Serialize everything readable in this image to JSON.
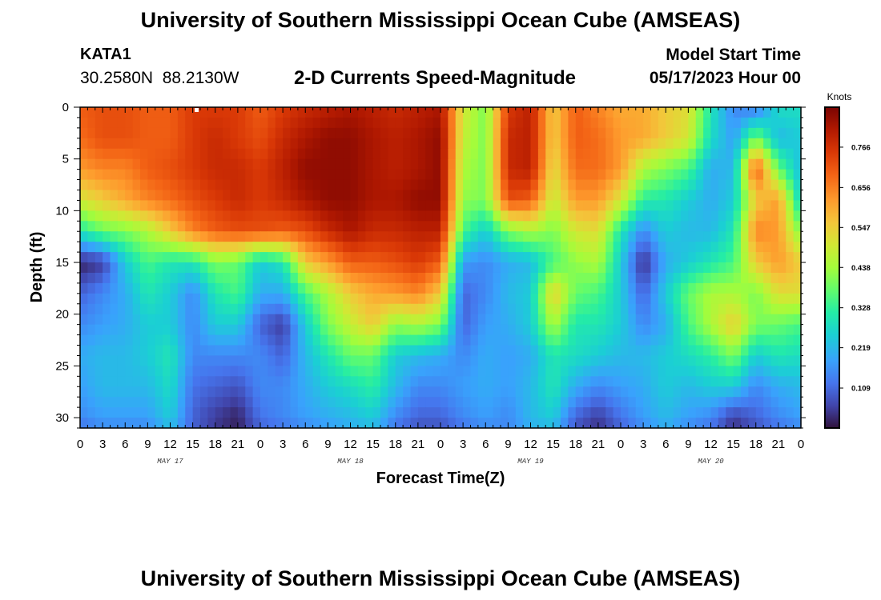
{
  "header": {
    "title": "University of Southern Mississippi Ocean Cube (AMSEAS)",
    "station_id": "KATA1",
    "coordinates": "30.2580N  88.2130W",
    "chart_title": "2-D Currents Speed-Magnitude",
    "model_start_label": "Model Start Time",
    "model_start_value": "05/17/2023 Hour 00"
  },
  "footer": {
    "title": "University of Southern Mississippi Ocean Cube (AMSEAS)"
  },
  "chart_data": {
    "type": "heatmap",
    "title": "2-D Currents Speed-Magnitude",
    "xlabel": "Forecast Time(Z)",
    "ylabel": "Depth (ft)",
    "x_range_hours": [
      0,
      96
    ],
    "y_range_ft": [
      0,
      31
    ],
    "y_reversed": true,
    "x_tick_hours": [
      0,
      3,
      6,
      9,
      12,
      15,
      18,
      21,
      24,
      27,
      30,
      33,
      36,
      39,
      42,
      45,
      48,
      51,
      54,
      57,
      60,
      63,
      66,
      69,
      72,
      75,
      78,
      81,
      84,
      87,
      90,
      93,
      96
    ],
    "x_tick_labels": [
      "0",
      "3",
      "6",
      "9",
      "12",
      "15",
      "18",
      "21",
      "0",
      "3",
      "6",
      "9",
      "12",
      "15",
      "18",
      "21",
      "0",
      "3",
      "6",
      "9",
      "12",
      "15",
      "18",
      "21",
      "0",
      "3",
      "6",
      "9",
      "12",
      "15",
      "18",
      "21",
      "0"
    ],
    "day_labels": [
      {
        "text": "MAY 17",
        "hour": 12
      },
      {
        "text": "MAY 18",
        "hour": 36
      },
      {
        "text": "MAY 19",
        "hour": 60
      },
      {
        "text": "MAY 20",
        "hour": 84
      }
    ],
    "y_ticks": [
      0,
      5,
      10,
      15,
      20,
      25,
      30
    ],
    "y_tick_labels": [
      "0",
      "5",
      "10",
      "15",
      "20",
      "25",
      "30"
    ],
    "colorbar": {
      "unit": "Knots",
      "min": 0.0,
      "max": 0.875,
      "ticks": [
        0.109,
        0.219,
        0.328,
        0.438,
        0.547,
        0.656,
        0.766
      ],
      "tick_labels": [
        "0.109",
        "0.219",
        "0.328",
        "0.438",
        "0.547",
        "0.656",
        "0.766"
      ]
    },
    "grid_times_hours": [
      0,
      3,
      6,
      9,
      12,
      15,
      18,
      21,
      24,
      27,
      30,
      33,
      36,
      39,
      42,
      45,
      48,
      51,
      54,
      57,
      60,
      63,
      66,
      69,
      72,
      75,
      78,
      81,
      84,
      87,
      90,
      93,
      96
    ],
    "grid_depths_ft": [
      0,
      3,
      6,
      9,
      12,
      15,
      18,
      21,
      24,
      27,
      30,
      31
    ],
    "speed_knots": [
      [
        0.7,
        0.72,
        0.72,
        0.7,
        0.7,
        0.75,
        0.75,
        0.75,
        0.7,
        0.75,
        0.78,
        0.8,
        0.82,
        0.8,
        0.78,
        0.8,
        0.82,
        0.5,
        0.4,
        0.75,
        0.8,
        0.55,
        0.7,
        0.65,
        0.6,
        0.6,
        0.55,
        0.52,
        0.3,
        0.15,
        0.12,
        0.28,
        0.28
      ],
      [
        0.68,
        0.72,
        0.72,
        0.7,
        0.7,
        0.75,
        0.78,
        0.75,
        0.72,
        0.78,
        0.82,
        0.85,
        0.85,
        0.82,
        0.8,
        0.82,
        0.85,
        0.48,
        0.4,
        0.78,
        0.8,
        0.55,
        0.7,
        0.68,
        0.62,
        0.6,
        0.55,
        0.5,
        0.28,
        0.18,
        0.4,
        0.22,
        0.25
      ],
      [
        0.62,
        0.65,
        0.65,
        0.7,
        0.72,
        0.75,
        0.78,
        0.78,
        0.75,
        0.8,
        0.85,
        0.85,
        0.85,
        0.82,
        0.8,
        0.82,
        0.85,
        0.45,
        0.4,
        0.78,
        0.8,
        0.52,
        0.68,
        0.68,
        0.62,
        0.45,
        0.4,
        0.35,
        0.2,
        0.22,
        0.72,
        0.38,
        0.22
      ],
      [
        0.5,
        0.55,
        0.6,
        0.65,
        0.68,
        0.72,
        0.75,
        0.78,
        0.75,
        0.78,
        0.82,
        0.85,
        0.85,
        0.82,
        0.82,
        0.85,
        0.85,
        0.42,
        0.4,
        0.72,
        0.7,
        0.48,
        0.62,
        0.62,
        0.5,
        0.32,
        0.3,
        0.25,
        0.2,
        0.25,
        0.55,
        0.62,
        0.25
      ],
      [
        0.3,
        0.38,
        0.4,
        0.45,
        0.55,
        0.65,
        0.7,
        0.72,
        0.72,
        0.7,
        0.72,
        0.78,
        0.82,
        0.78,
        0.78,
        0.8,
        0.8,
        0.35,
        0.25,
        0.4,
        0.45,
        0.4,
        0.5,
        0.52,
        0.3,
        0.15,
        0.25,
        0.22,
        0.22,
        0.3,
        0.65,
        0.62,
        0.4
      ],
      [
        0.02,
        0.05,
        0.25,
        0.35,
        0.3,
        0.3,
        0.4,
        0.38,
        0.25,
        0.3,
        0.55,
        0.62,
        0.7,
        0.7,
        0.72,
        0.75,
        0.7,
        0.18,
        0.15,
        0.2,
        0.22,
        0.35,
        0.42,
        0.45,
        0.25,
        0.03,
        0.2,
        0.25,
        0.3,
        0.35,
        0.55,
        0.62,
        0.55
      ],
      [
        0.1,
        0.15,
        0.2,
        0.3,
        0.25,
        0.15,
        0.3,
        0.35,
        0.2,
        0.2,
        0.35,
        0.45,
        0.55,
        0.6,
        0.62,
        0.65,
        0.55,
        0.1,
        0.15,
        0.22,
        0.25,
        0.55,
        0.38,
        0.35,
        0.25,
        0.1,
        0.25,
        0.38,
        0.45,
        0.45,
        0.4,
        0.52,
        0.52
      ],
      [
        0.15,
        0.18,
        0.2,
        0.25,
        0.25,
        0.15,
        0.25,
        0.25,
        0.1,
        0.05,
        0.25,
        0.4,
        0.48,
        0.55,
        0.42,
        0.45,
        0.4,
        0.1,
        0.18,
        0.2,
        0.25,
        0.45,
        0.3,
        0.3,
        0.25,
        0.15,
        0.2,
        0.35,
        0.45,
        0.55,
        0.4,
        0.38,
        0.35
      ],
      [
        0.2,
        0.22,
        0.22,
        0.25,
        0.3,
        0.15,
        0.15,
        0.15,
        0.15,
        0.1,
        0.22,
        0.3,
        0.38,
        0.38,
        0.25,
        0.22,
        0.2,
        0.15,
        0.2,
        0.18,
        0.2,
        0.3,
        0.28,
        0.25,
        0.22,
        0.22,
        0.25,
        0.28,
        0.32,
        0.4,
        0.25,
        0.3,
        0.28
      ],
      [
        0.18,
        0.22,
        0.22,
        0.22,
        0.28,
        0.12,
        0.1,
        0.08,
        0.15,
        0.15,
        0.2,
        0.25,
        0.28,
        0.32,
        0.22,
        0.15,
        0.15,
        0.18,
        0.2,
        0.18,
        0.22,
        0.3,
        0.2,
        0.15,
        0.18,
        0.2,
        0.25,
        0.22,
        0.25,
        0.25,
        0.15,
        0.2,
        0.22
      ],
      [
        0.15,
        0.18,
        0.18,
        0.18,
        0.25,
        0.1,
        0.05,
        0.02,
        0.12,
        0.15,
        0.18,
        0.2,
        0.22,
        0.25,
        0.15,
        0.1,
        0.1,
        0.15,
        0.18,
        0.15,
        0.22,
        0.25,
        0.1,
        0.05,
        0.12,
        0.18,
        0.22,
        0.18,
        0.15,
        0.05,
        0.1,
        0.15,
        0.18
      ],
      [
        0.12,
        0.15,
        0.15,
        0.15,
        0.22,
        0.1,
        0.05,
        0.02,
        0.1,
        0.12,
        0.15,
        0.18,
        0.2,
        0.22,
        0.12,
        0.08,
        0.08,
        0.12,
        0.15,
        0.15,
        0.2,
        0.22,
        0.08,
        0.04,
        0.1,
        0.15,
        0.2,
        0.15,
        0.12,
        0.04,
        0.08,
        0.12,
        0.15
      ]
    ]
  }
}
